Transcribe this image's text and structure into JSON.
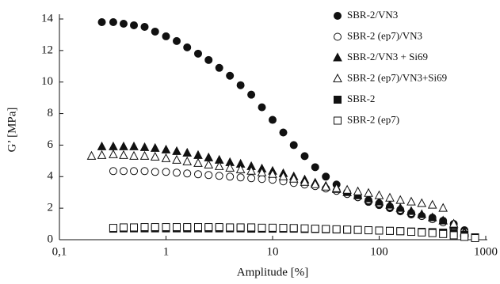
{
  "chart_data": {
    "type": "scatter",
    "xscale": "log",
    "x_label": "Amplitude [%]",
    "y_label": "G’ [MPa]",
    "xlim": [
      0.1,
      1000
    ],
    "ylim": [
      0,
      14
    ],
    "xticks": [
      {
        "value": 0.1,
        "label": "0,1"
      },
      1,
      10,
      100,
      1000
    ],
    "yticks": [
      0,
      2,
      4,
      6,
      8,
      10,
      12,
      14
    ],
    "legend": "upper right",
    "series": [
      {
        "name": "SBR-2/VN3",
        "marker": "circle",
        "color": "#111111",
        "fill": "#111111",
        "x": [
          0.25,
          0.32,
          0.4,
          0.5,
          0.63,
          0.79,
          1,
          1.26,
          1.58,
          2,
          2.51,
          3.16,
          3.98,
          5.01,
          6.31,
          7.94,
          10,
          12.6,
          15.8,
          20,
          25.1,
          31.6,
          39.8,
          50.1,
          63.1,
          79.4,
          100,
          126,
          158,
          200,
          251,
          316,
          398,
          501,
          631
        ],
        "values": [
          13.8,
          13.8,
          13.7,
          13.6,
          13.5,
          13.2,
          12.9,
          12.6,
          12.2,
          11.8,
          11.4,
          10.9,
          10.4,
          9.8,
          9.2,
          8.4,
          7.6,
          6.8,
          6.0,
          5.3,
          4.6,
          4.0,
          3.5,
          3.0,
          2.7,
          2.4,
          2.2,
          2.0,
          1.8,
          1.6,
          1.5,
          1.4,
          1.2,
          1.0,
          0.6
        ]
      },
      {
        "name": "SBR-2 (ep7)/VN3",
        "marker": "circle",
        "color": "#111111",
        "fill": "#ffffff",
        "x": [
          0.32,
          0.4,
          0.5,
          0.63,
          0.79,
          1,
          1.26,
          1.58,
          2,
          2.51,
          3.16,
          3.98,
          5.01,
          6.31,
          7.94,
          10,
          12.6,
          15.8,
          20,
          25.1,
          31.6,
          39.8,
          50.1,
          63.1,
          79.4,
          100,
          126,
          158,
          200,
          251,
          316,
          398,
          501,
          631
        ],
        "values": [
          4.35,
          4.35,
          4.35,
          4.35,
          4.3,
          4.3,
          4.25,
          4.2,
          4.15,
          4.1,
          4.05,
          4.0,
          3.95,
          3.9,
          3.85,
          3.8,
          3.7,
          3.6,
          3.5,
          3.4,
          3.25,
          3.1,
          2.9,
          2.7,
          2.5,
          2.3,
          2.1,
          1.9,
          1.7,
          1.5,
          1.3,
          1.1,
          0.8,
          0.5
        ]
      },
      {
        "name": "SBR-2/VN3 + Si69",
        "marker": "triangle",
        "color": "#111111",
        "fill": "#111111",
        "x": [
          0.25,
          0.32,
          0.4,
          0.5,
          0.63,
          0.79,
          1,
          1.26,
          1.58,
          2,
          2.51,
          3.16,
          3.98,
          5.01,
          6.31,
          7.94,
          10,
          12.6,
          15.8,
          20,
          25.1,
          31.6,
          39.8,
          50.1,
          63.1,
          79.4,
          100,
          126,
          158,
          200,
          251,
          316,
          398,
          501,
          631
        ],
        "values": [
          5.9,
          5.9,
          5.9,
          5.9,
          5.85,
          5.8,
          5.7,
          5.6,
          5.5,
          5.35,
          5.2,
          5.05,
          4.9,
          4.8,
          4.65,
          4.5,
          4.35,
          4.2,
          4.0,
          3.8,
          3.6,
          3.4,
          3.2,
          3.0,
          2.8,
          2.6,
          2.4,
          2.2,
          2.0,
          1.8,
          1.6,
          1.4,
          1.2,
          0.9,
          0.5
        ]
      },
      {
        "name": "SBR-2 (ep7)/VN3+Si69",
        "marker": "triangle",
        "color": "#111111",
        "fill": "#ffffff",
        "x": [
          0.2,
          0.25,
          0.32,
          0.4,
          0.5,
          0.63,
          0.79,
          1,
          1.26,
          1.58,
          2,
          2.51,
          3.16,
          3.98,
          5.01,
          6.31,
          7.94,
          10,
          12.6,
          15.8,
          20,
          25.1,
          31.6,
          39.8,
          50.1,
          63.1,
          79.4,
          100,
          126,
          158,
          200,
          251,
          316,
          398,
          501,
          631
        ],
        "values": [
          5.3,
          5.35,
          5.4,
          5.35,
          5.3,
          5.3,
          5.25,
          5.15,
          5.05,
          4.95,
          4.85,
          4.75,
          4.65,
          4.55,
          4.45,
          4.35,
          4.25,
          4.15,
          4.0,
          3.85,
          3.65,
          3.5,
          3.35,
          3.25,
          3.15,
          3.05,
          2.95,
          2.8,
          2.65,
          2.5,
          2.4,
          2.3,
          2.2,
          2.0,
          1.0,
          0.4
        ]
      },
      {
        "name": "SBR-2",
        "marker": "square",
        "color": "#111111",
        "fill": "#111111",
        "x": [
          0.32,
          0.4,
          0.5,
          0.63,
          0.79,
          1,
          1.26,
          1.58,
          2,
          2.51,
          3.16,
          3.98,
          5.01,
          6.31,
          7.94,
          10,
          12.6,
          15.8,
          20,
          25.1,
          31.6,
          39.8,
          50.1,
          63.1,
          79.4,
          100,
          126,
          158,
          200,
          251,
          316,
          398,
          501,
          631,
          794
        ],
        "values": [
          0.7,
          0.72,
          0.72,
          0.72,
          0.72,
          0.72,
          0.72,
          0.72,
          0.72,
          0.72,
          0.72,
          0.72,
          0.72,
          0.7,
          0.7,
          0.7,
          0.7,
          0.7,
          0.68,
          0.68,
          0.66,
          0.65,
          0.63,
          0.62,
          0.6,
          0.58,
          0.56,
          0.54,
          0.52,
          0.5,
          0.48,
          0.45,
          0.4,
          0.3,
          0.15
        ]
      },
      {
        "name": "SBR-2 (ep7)",
        "marker": "square",
        "color": "#111111",
        "fill": "#ffffff",
        "x": [
          0.32,
          0.4,
          0.5,
          0.63,
          0.79,
          1,
          1.26,
          1.58,
          2,
          2.51,
          3.16,
          3.98,
          5.01,
          6.31,
          7.94,
          10,
          12.6,
          15.8,
          20,
          25.1,
          31.6,
          39.8,
          50.1,
          63.1,
          79.4,
          100,
          126,
          158,
          200,
          251,
          316,
          398,
          501,
          631,
          794
        ],
        "values": [
          0.75,
          0.78,
          0.78,
          0.8,
          0.8,
          0.8,
          0.8,
          0.8,
          0.8,
          0.8,
          0.8,
          0.78,
          0.78,
          0.78,
          0.76,
          0.76,
          0.75,
          0.74,
          0.72,
          0.7,
          0.68,
          0.66,
          0.64,
          0.62,
          0.6,
          0.58,
          0.56,
          0.54,
          0.5,
          0.46,
          0.42,
          0.36,
          0.28,
          0.18,
          0.1
        ]
      }
    ]
  }
}
